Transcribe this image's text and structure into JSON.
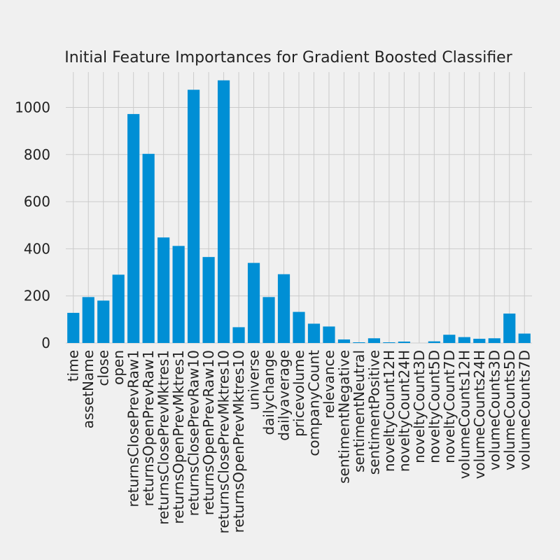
{
  "chart_data": {
    "type": "bar",
    "title": "Initial Feature Importances for Gradient Boosted Classifier",
    "xlabel": "",
    "ylabel": "",
    "ylim": [
      0,
      1150
    ],
    "yticks": [
      0,
      200,
      400,
      600,
      800,
      1000
    ],
    "grid": true,
    "color": "#008fd5",
    "categories": [
      "time",
      "assetName",
      "close",
      "open",
      "returnsClosePrevRaw1",
      "returnsOpenPrevRaw1",
      "returnsClosePrevMktres1",
      "returnsOpenPrevMktres1",
      "returnsClosePrevRaw10",
      "returnsOpenPrevRaw10",
      "returnsClosePrevMktres10",
      "returnsOpenPrevMktres10",
      "universe",
      "dailychange",
      "dailyaverage",
      "pricevolume",
      "companyCount",
      "relevance",
      "sentimentNegative",
      "sentimentNeutral",
      "sentimentPositive",
      "noveltyCount12H",
      "noveltyCount24H",
      "noveltyCount3D",
      "noveltyCount5D",
      "noveltyCount7D",
      "volumeCounts12H",
      "volumeCounts24H",
      "volumeCounts3D",
      "volumeCounts5D",
      "volumeCounts7D"
    ],
    "values": [
      128,
      195,
      180,
      290,
      972,
      803,
      448,
      412,
      1075,
      365,
      1115,
      67,
      340,
      195,
      292,
      132,
      82,
      70,
      15,
      3,
      20,
      3,
      6,
      0,
      7,
      35,
      25,
      18,
      20,
      125,
      40
    ]
  }
}
